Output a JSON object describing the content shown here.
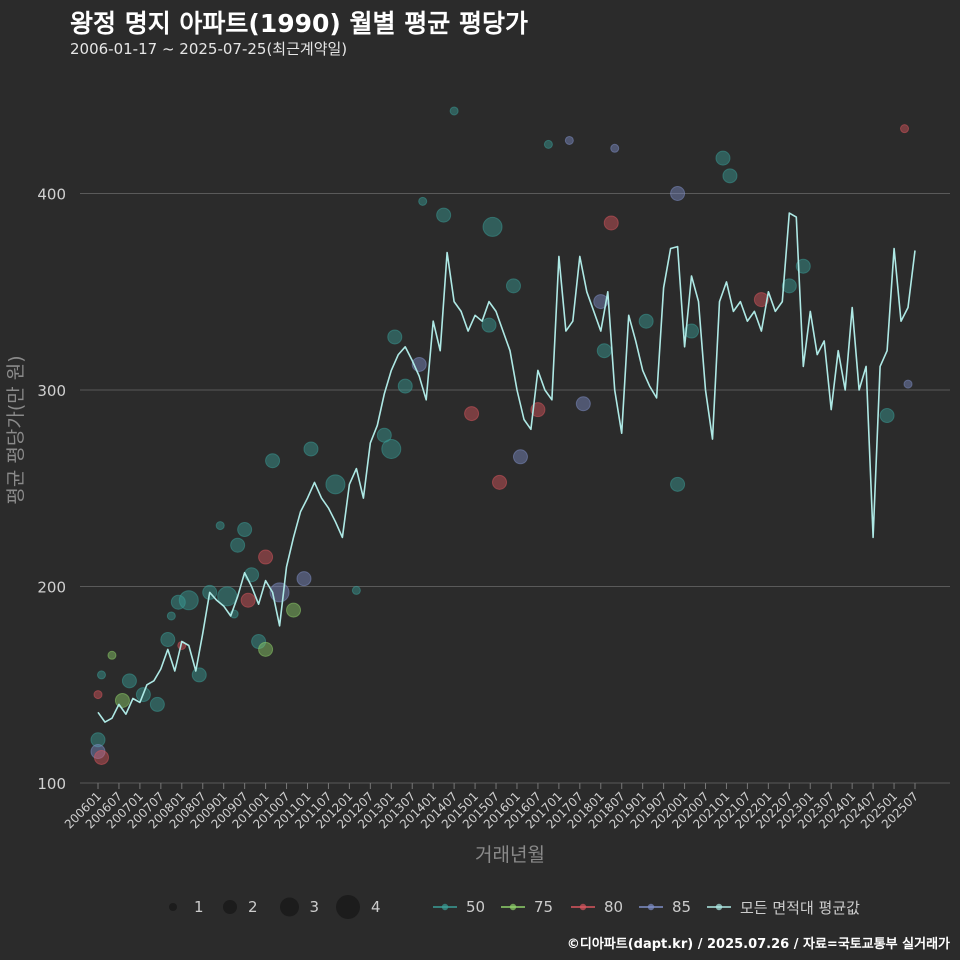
{
  "title": "왕정 명지 아파트(1990) 월별 평균 평당가",
  "subtitle": "2006-01-17 ~ 2025-07-25(최근계약일)",
  "footer": "©디아파트(dapt.kr) / 2025.07.26 / 자료=국토교통부 실거래가",
  "legend": {
    "size_title": "",
    "sizes": [
      {
        "label": "1",
        "value": 1
      },
      {
        "label": "2",
        "value": 2
      },
      {
        "label": "3",
        "value": 3
      },
      {
        "label": "4",
        "value": 4
      }
    ],
    "series": [
      {
        "label": "50",
        "color": "#3a9e97"
      },
      {
        "label": "75",
        "color": "#8fd16a"
      },
      {
        "label": "80",
        "color": "#d9565e"
      },
      {
        "label": "85",
        "color": "#7f8fc7"
      },
      {
        "label": "모든 면적대 평균값",
        "color": "#aee9e5"
      }
    ]
  },
  "chart_data": {
    "type": "line+scatter",
    "title": "왕정 명지 아파트(1990) 월별 평균 평당가",
    "xlabel": "거래년월",
    "ylabel": "평균 평당가(만 원)",
    "ylim": [
      100,
      450
    ],
    "yticks": [
      100,
      200,
      300,
      400
    ],
    "xlim": [
      "200601",
      "202508"
    ],
    "x_tick_labels": [
      "200601",
      "200607",
      "200701",
      "200707",
      "200801",
      "200807",
      "200901",
      "200907",
      "201001",
      "201007",
      "201101",
      "201107",
      "201201",
      "201207",
      "201301",
      "201307",
      "201401",
      "201407",
      "201501",
      "201507",
      "201601",
      "201607",
      "201701",
      "201707",
      "201801",
      "201807",
      "201901",
      "201907",
      "202001",
      "202007",
      "202101",
      "202107",
      "202201",
      "202207",
      "202301",
      "202307",
      "202401",
      "202407",
      "202501",
      "202507"
    ],
    "average_line": {
      "name": "모든 면적대 평균값",
      "color": "#aee9e5",
      "points": [
        [
          "2006-01",
          136
        ],
        [
          "2006-03",
          131
        ],
        [
          "2006-05",
          133
        ],
        [
          "2006-07",
          140
        ],
        [
          "2006-09",
          135
        ],
        [
          "2006-11",
          143
        ],
        [
          "2007-01",
          141
        ],
        [
          "2007-03",
          150
        ],
        [
          "2007-05",
          152
        ],
        [
          "2007-07",
          158
        ],
        [
          "2007-09",
          168
        ],
        [
          "2007-11",
          157
        ],
        [
          "2008-01",
          172
        ],
        [
          "2008-03",
          170
        ],
        [
          "2008-05",
          157
        ],
        [
          "2008-07",
          176
        ],
        [
          "2008-09",
          197
        ],
        [
          "2008-11",
          193
        ],
        [
          "2009-01",
          190
        ],
        [
          "2009-03",
          185
        ],
        [
          "2009-05",
          195
        ],
        [
          "2009-07",
          207
        ],
        [
          "2009-09",
          200
        ],
        [
          "2009-11",
          191
        ],
        [
          "2010-01",
          203
        ],
        [
          "2010-03",
          197
        ],
        [
          "2010-05",
          180
        ],
        [
          "2010-07",
          210
        ],
        [
          "2010-09",
          225
        ],
        [
          "2010-11",
          238
        ],
        [
          "2011-01",
          245
        ],
        [
          "2011-03",
          253
        ],
        [
          "2011-05",
          245
        ],
        [
          "2011-07",
          240
        ],
        [
          "2011-09",
          233
        ],
        [
          "2011-11",
          225
        ],
        [
          "2012-01",
          252
        ],
        [
          "2012-03",
          260
        ],
        [
          "2012-05",
          245
        ],
        [
          "2012-07",
          273
        ],
        [
          "2012-09",
          282
        ],
        [
          "2012-11",
          298
        ],
        [
          "2013-01",
          310
        ],
        [
          "2013-03",
          318
        ],
        [
          "2013-05",
          322
        ],
        [
          "2013-07",
          315
        ],
        [
          "2013-09",
          307
        ],
        [
          "2013-11",
          295
        ],
        [
          "2014-01",
          335
        ],
        [
          "2014-03",
          320
        ],
        [
          "2014-05",
          370
        ],
        [
          "2014-07",
          345
        ],
        [
          "2014-09",
          340
        ],
        [
          "2014-11",
          330
        ],
        [
          "2015-01",
          338
        ],
        [
          "2015-03",
          335
        ],
        [
          "2015-05",
          345
        ],
        [
          "2015-07",
          340
        ],
        [
          "2015-09",
          330
        ],
        [
          "2015-11",
          320
        ],
        [
          "2016-01",
          300
        ],
        [
          "2016-03",
          285
        ],
        [
          "2016-05",
          280
        ],
        [
          "2016-07",
          310
        ],
        [
          "2016-09",
          300
        ],
        [
          "2016-11",
          295
        ],
        [
          "2017-01",
          368
        ],
        [
          "2017-03",
          330
        ],
        [
          "2017-05",
          335
        ],
        [
          "2017-07",
          368
        ],
        [
          "2017-09",
          350
        ],
        [
          "2017-11",
          340
        ],
        [
          "2018-01",
          330
        ],
        [
          "2018-03",
          350
        ],
        [
          "2018-05",
          300
        ],
        [
          "2018-07",
          278
        ],
        [
          "2018-09",
          338
        ],
        [
          "2018-11",
          325
        ],
        [
          "2019-01",
          310
        ],
        [
          "2019-03",
          302
        ],
        [
          "2019-05",
          296
        ],
        [
          "2019-07",
          352
        ],
        [
          "2019-09",
          372
        ],
        [
          "2019-11",
          373
        ],
        [
          "2020-01",
          322
        ],
        [
          "2020-03",
          358
        ],
        [
          "2020-05",
          345
        ],
        [
          "2020-07",
          300
        ],
        [
          "2020-09",
          275
        ],
        [
          "2020-11",
          345
        ],
        [
          "2021-01",
          355
        ],
        [
          "2021-03",
          340
        ],
        [
          "2021-05",
          345
        ],
        [
          "2021-07",
          335
        ],
        [
          "2021-09",
          340
        ],
        [
          "2021-11",
          330
        ],
        [
          "2022-01",
          350
        ],
        [
          "2022-03",
          340
        ],
        [
          "2022-05",
          345
        ],
        [
          "2022-07",
          390
        ],
        [
          "2022-09",
          388
        ],
        [
          "2022-11",
          312
        ],
        [
          "2023-01",
          340
        ],
        [
          "2023-03",
          318
        ],
        [
          "2023-05",
          325
        ],
        [
          "2023-07",
          290
        ],
        [
          "2023-09",
          320
        ],
        [
          "2023-11",
          300
        ],
        [
          "2024-01",
          342
        ],
        [
          "2024-03",
          300
        ],
        [
          "2024-05",
          312
        ],
        [
          "2024-07",
          225
        ],
        [
          "2024-09",
          312
        ],
        [
          "2024-11",
          320
        ],
        [
          "2025-01",
          372
        ],
        [
          "2025-03",
          335
        ],
        [
          "2025-05",
          342
        ],
        [
          "2025-07",
          371
        ]
      ]
    },
    "scatter": [
      {
        "date": "2006-01",
        "value": 122,
        "series": "50",
        "size": 2
      },
      {
        "date": "2006-01",
        "value": 116,
        "series": "85",
        "size": 2
      },
      {
        "date": "2006-02",
        "value": 113,
        "series": "80",
        "size": 2
      },
      {
        "date": "2006-01",
        "value": 145,
        "series": "80",
        "size": 1
      },
      {
        "date": "2006-02",
        "value": 155,
        "series": "50",
        "size": 1
      },
      {
        "date": "2006-05",
        "value": 165,
        "series": "75",
        "size": 1
      },
      {
        "date": "2006-08",
        "value": 142,
        "series": "75",
        "size": 2
      },
      {
        "date": "2006-10",
        "value": 152,
        "series": "50",
        "size": 2
      },
      {
        "date": "2007-02",
        "value": 145,
        "series": "50",
        "size": 2
      },
      {
        "date": "2007-06",
        "value": 140,
        "series": "50",
        "size": 2
      },
      {
        "date": "2007-09",
        "value": 173,
        "series": "50",
        "size": 2
      },
      {
        "date": "2007-10",
        "value": 185,
        "series": "50",
        "size": 1
      },
      {
        "date": "2007-12",
        "value": 192,
        "series": "50",
        "size": 2
      },
      {
        "date": "2008-01",
        "value": 170,
        "series": "80",
        "size": 1
      },
      {
        "date": "2008-03",
        "value": 193,
        "series": "50",
        "size": 3
      },
      {
        "date": "2008-06",
        "value": 155,
        "series": "50",
        "size": 2
      },
      {
        "date": "2008-09",
        "value": 197,
        "series": "50",
        "size": 2
      },
      {
        "date": "2008-12",
        "value": 231,
        "series": "50",
        "size": 1
      },
      {
        "date": "2009-02",
        "value": 195,
        "series": "50",
        "size": 3
      },
      {
        "date": "2009-04",
        "value": 186,
        "series": "50",
        "size": 1
      },
      {
        "date": "2009-05",
        "value": 221,
        "series": "50",
        "size": 2
      },
      {
        "date": "2009-07",
        "value": 229,
        "series": "50",
        "size": 2
      },
      {
        "date": "2009-08",
        "value": 193,
        "series": "80",
        "size": 2
      },
      {
        "date": "2009-09",
        "value": 206,
        "series": "50",
        "size": 2
      },
      {
        "date": "2009-11",
        "value": 172,
        "series": "50",
        "size": 2
      },
      {
        "date": "2010-01",
        "value": 215,
        "series": "80",
        "size": 2
      },
      {
        "date": "2010-01",
        "value": 168,
        "series": "75",
        "size": 2
      },
      {
        "date": "2010-03",
        "value": 264,
        "series": "50",
        "size": 2
      },
      {
        "date": "2010-05",
        "value": 197,
        "series": "85",
        "size": 3
      },
      {
        "date": "2010-09",
        "value": 188,
        "series": "75",
        "size": 2
      },
      {
        "date": "2010-12",
        "value": 204,
        "series": "85",
        "size": 2
      },
      {
        "date": "2011-02",
        "value": 270,
        "series": "50",
        "size": 2
      },
      {
        "date": "2011-09",
        "value": 252,
        "series": "50",
        "size": 3
      },
      {
        "date": "2012-03",
        "value": 198,
        "series": "50",
        "size": 1
      },
      {
        "date": "2012-11",
        "value": 277,
        "series": "50",
        "size": 2
      },
      {
        "date": "2013-01",
        "value": 270,
        "series": "50",
        "size": 3
      },
      {
        "date": "2013-02",
        "value": 327,
        "series": "50",
        "size": 2
      },
      {
        "date": "2013-05",
        "value": 302,
        "series": "50",
        "size": 2
      },
      {
        "date": "2013-09",
        "value": 313,
        "series": "85",
        "size": 2
      },
      {
        "date": "2013-10",
        "value": 396,
        "series": "50",
        "size": 1
      },
      {
        "date": "2014-04",
        "value": 389,
        "series": "50",
        "size": 2
      },
      {
        "date": "2014-07",
        "value": 442,
        "series": "50",
        "size": 1
      },
      {
        "date": "2014-12",
        "value": 288,
        "series": "80",
        "size": 2
      },
      {
        "date": "2015-05",
        "value": 333,
        "series": "50",
        "size": 2
      },
      {
        "date": "2015-06",
        "value": 383,
        "series": "50",
        "size": 3
      },
      {
        "date": "2015-08",
        "value": 253,
        "series": "80",
        "size": 2
      },
      {
        "date": "2015-12",
        "value": 353,
        "series": "50",
        "size": 2
      },
      {
        "date": "2016-02",
        "value": 266,
        "series": "85",
        "size": 2
      },
      {
        "date": "2016-07",
        "value": 290,
        "series": "80",
        "size": 2
      },
      {
        "date": "2016-10",
        "value": 425,
        "series": "50",
        "size": 1
      },
      {
        "date": "2017-04",
        "value": 427,
        "series": "85",
        "size": 1
      },
      {
        "date": "2017-08",
        "value": 293,
        "series": "85",
        "size": 2
      },
      {
        "date": "2018-01",
        "value": 345,
        "series": "85",
        "size": 2
      },
      {
        "date": "2018-02",
        "value": 320,
        "series": "50",
        "size": 2
      },
      {
        "date": "2018-04",
        "value": 385,
        "series": "80",
        "size": 2
      },
      {
        "date": "2018-05",
        "value": 423,
        "series": "85",
        "size": 1
      },
      {
        "date": "2019-02",
        "value": 335,
        "series": "50",
        "size": 2
      },
      {
        "date": "2019-11",
        "value": 400,
        "series": "85",
        "size": 2
      },
      {
        "date": "2019-11",
        "value": 252,
        "series": "50",
        "size": 2
      },
      {
        "date": "2020-03",
        "value": 330,
        "series": "50",
        "size": 2
      },
      {
        "date": "2020-12",
        "value": 418,
        "series": "50",
        "size": 2
      },
      {
        "date": "2021-02",
        "value": 409,
        "series": "50",
        "size": 2
      },
      {
        "date": "2021-11",
        "value": 346,
        "series": "80",
        "size": 2
      },
      {
        "date": "2022-07",
        "value": 353,
        "series": "50",
        "size": 2
      },
      {
        "date": "2022-11",
        "value": 363,
        "series": "50",
        "size": 2
      },
      {
        "date": "2024-11",
        "value": 287,
        "series": "50",
        "size": 2
      },
      {
        "date": "2025-04",
        "value": 433,
        "series": "80",
        "size": 1
      },
      {
        "date": "2025-05",
        "value": 303,
        "series": "85",
        "size": 1
      }
    ]
  }
}
